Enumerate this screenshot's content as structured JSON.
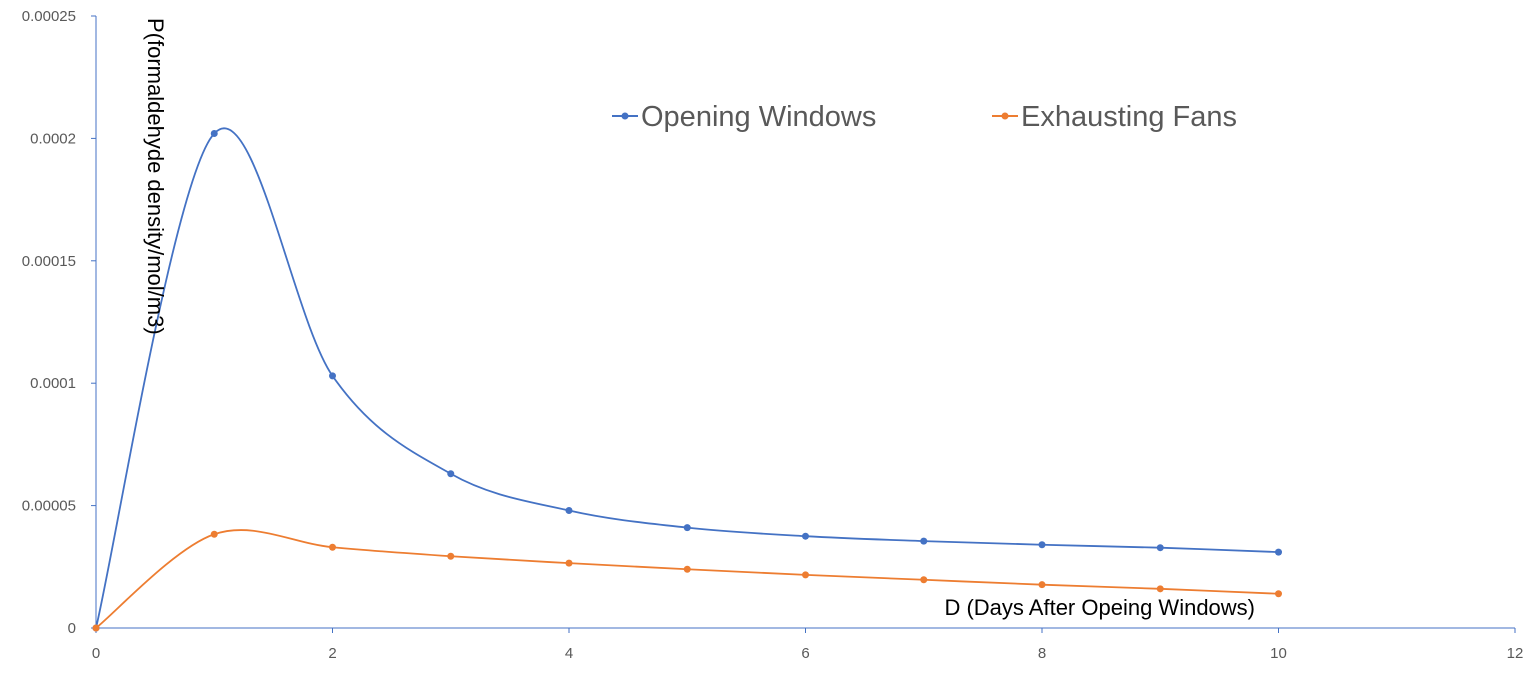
{
  "chart_data": {
    "type": "line",
    "smooth": true,
    "xlabel": "D (Days After Opeing Windows)",
    "ylabel": "P(formaldehyde density/mol/m3)",
    "xlim": [
      0,
      12
    ],
    "ylim": [
      0,
      0.00025
    ],
    "x_ticks": [
      "0",
      "2",
      "4",
      "6",
      "8",
      "10",
      "12"
    ],
    "y_ticks": [
      "0",
      "0.00005",
      "0.0001",
      "0.00015",
      "0.0002",
      "0.00025"
    ],
    "x_tick_values": [
      0,
      2,
      4,
      6,
      8,
      10,
      12
    ],
    "y_tick_values": [
      0,
      5e-05,
      0.0001,
      0.00015,
      0.0002,
      0.00025
    ],
    "grid": false,
    "legend_position": "top-right",
    "x": [
      0,
      1,
      2,
      3,
      4,
      5,
      6,
      7,
      8,
      9,
      10
    ],
    "series": [
      {
        "name": "Opening Windows",
        "color": "#4472C4",
        "values": [
          0,
          0.000202,
          0.000103,
          6.3e-05,
          4.8e-05,
          4.1e-05,
          3.75e-05,
          3.55e-05,
          3.4e-05,
          3.28e-05,
          3.1e-05
        ]
      },
      {
        "name": "Exhausting Fans",
        "color": "#ED7D31",
        "values": [
          0,
          3.83e-05,
          3.3e-05,
          2.93e-05,
          2.65e-05,
          2.4e-05,
          2.17e-05,
          1.97e-05,
          1.77e-05,
          1.6e-05,
          1.4e-05
        ]
      }
    ]
  }
}
